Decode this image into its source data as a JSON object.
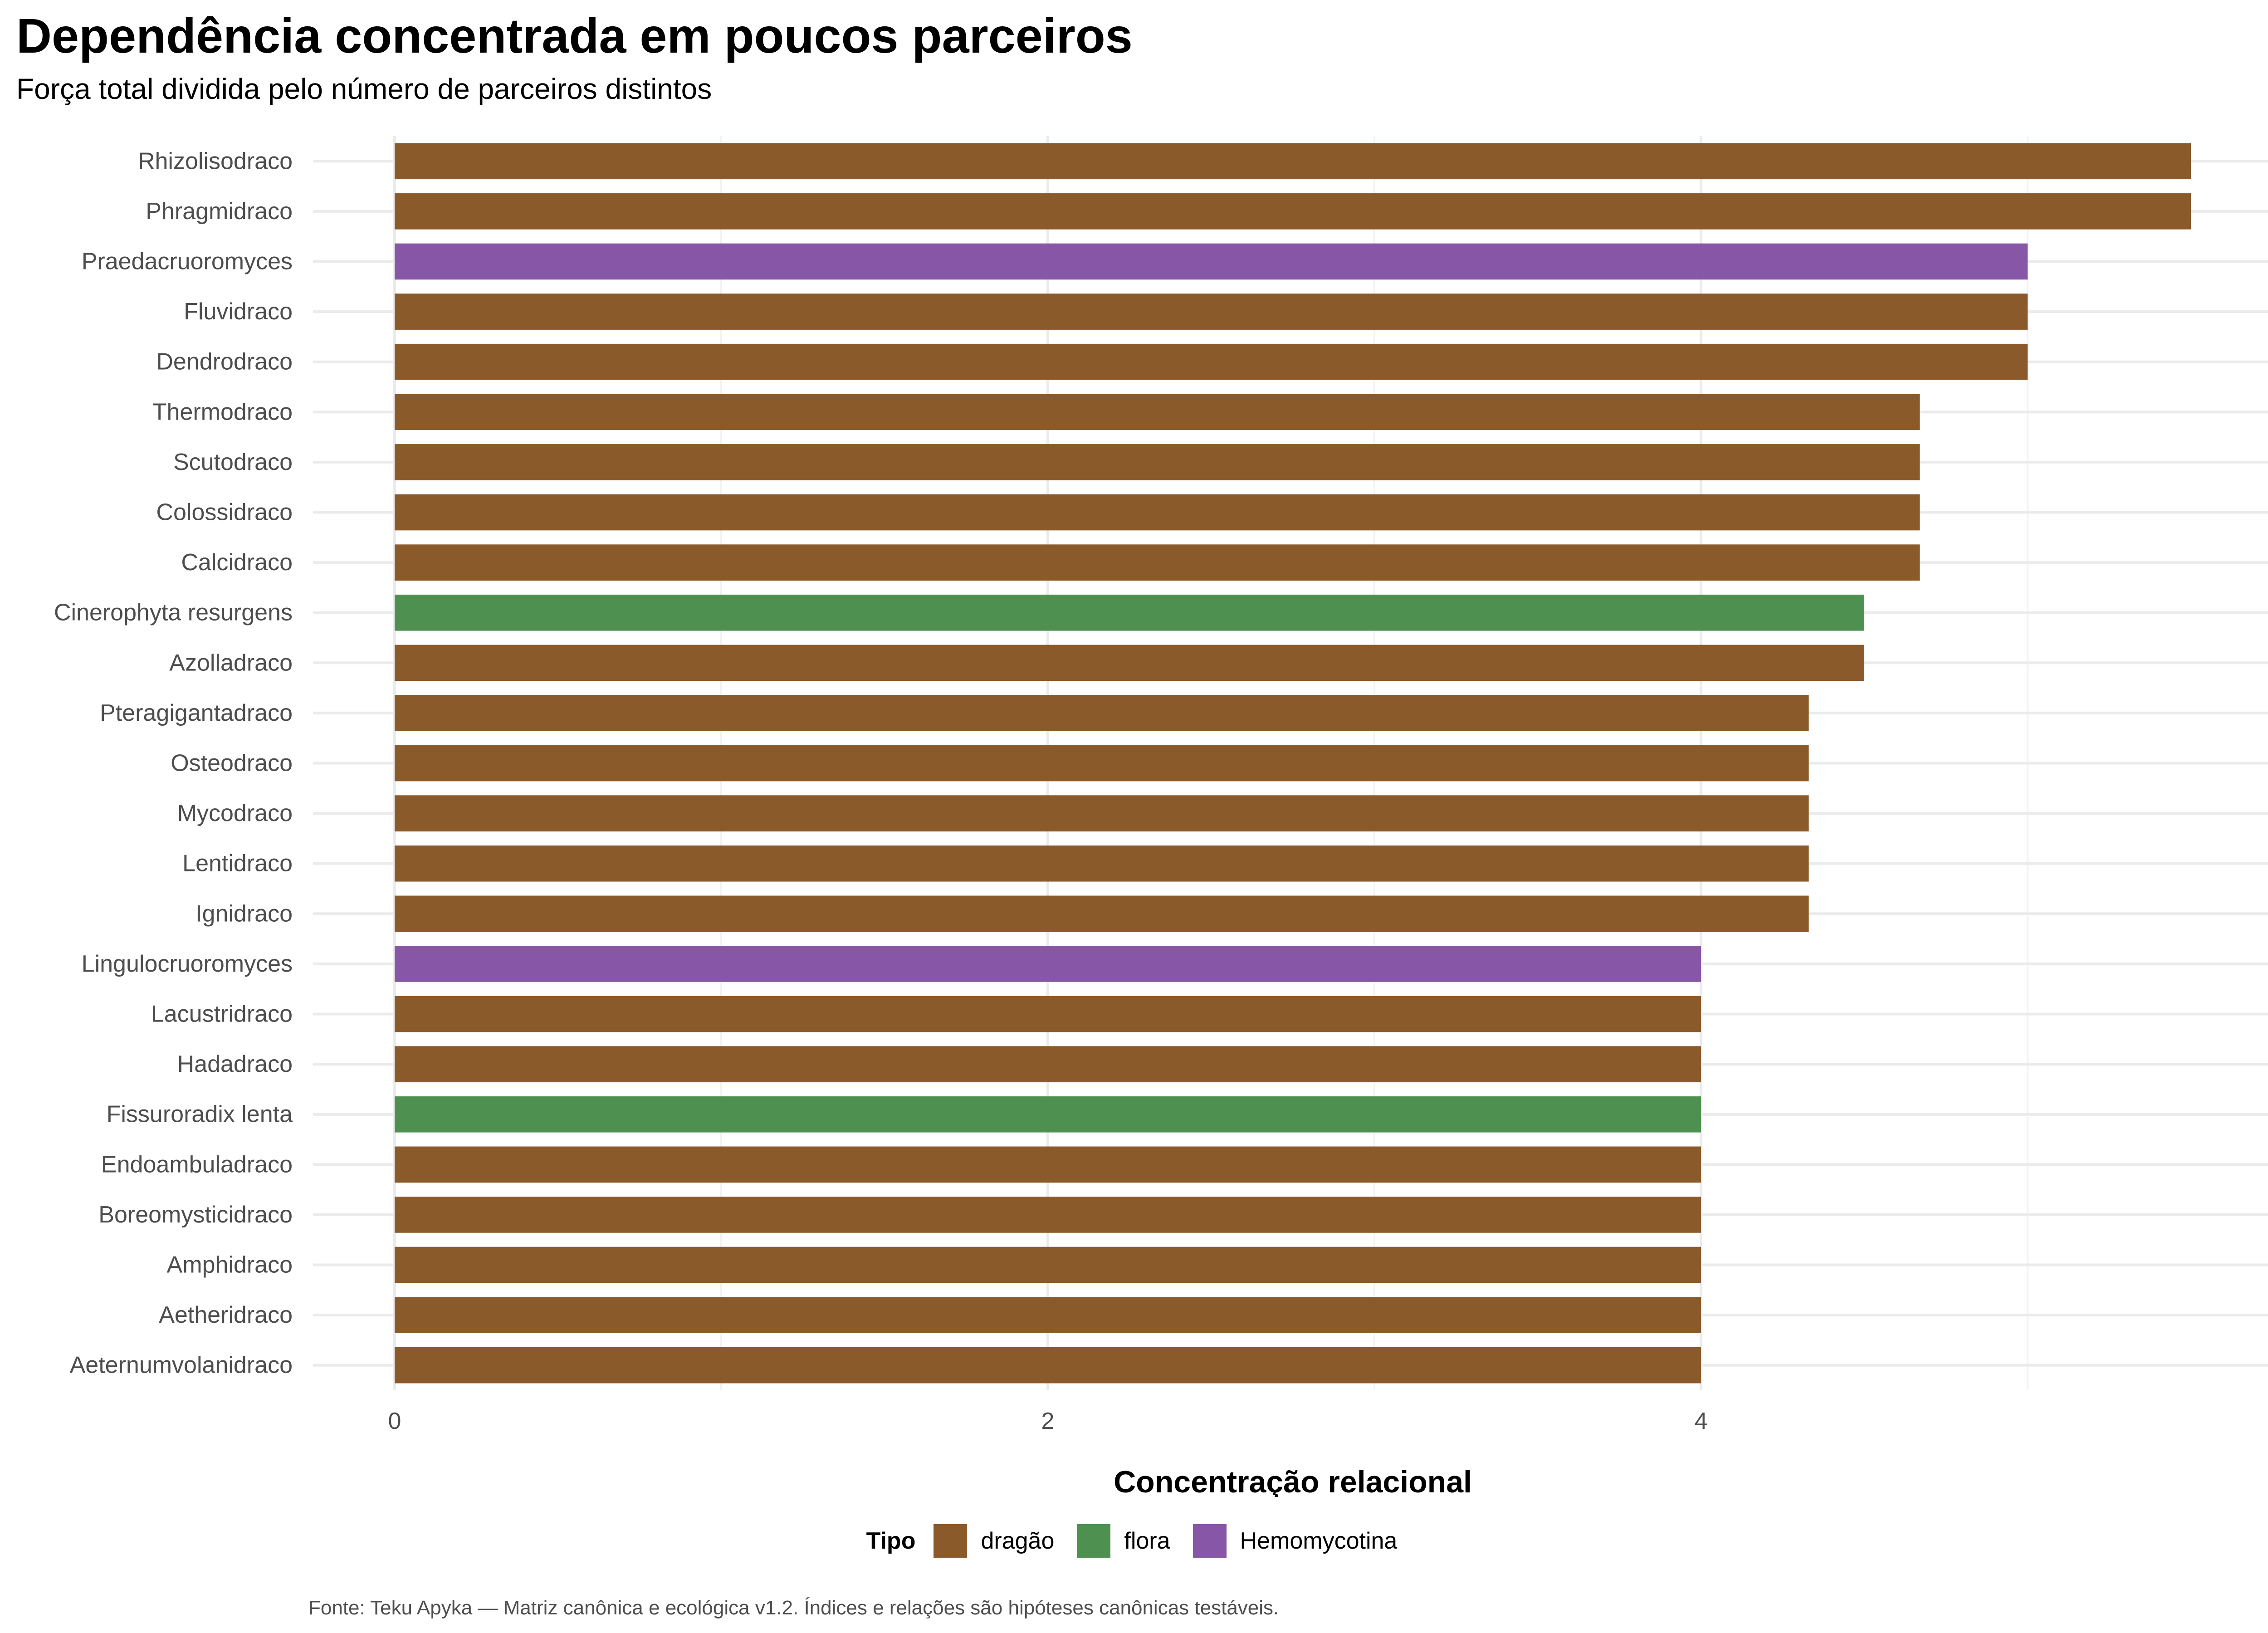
{
  "chart_data": {
    "type": "bar",
    "orientation": "horizontal",
    "title": "Dependência concentrada em poucos parceiros",
    "subtitle": "Força total dividida pelo número de parceiros distintos",
    "xlabel": "Concentração relacional",
    "ylabel": "",
    "xlim": [
      -0.25,
      5.75
    ],
    "xticks": [
      "0",
      "2",
      "4"
    ],
    "xtick_values": [
      0,
      2,
      4
    ],
    "grid": true,
    "legend_title": "Tipo",
    "legend_position": "bottom",
    "legend": [
      {
        "label": "dragão",
        "color": "#8B5A2B"
      },
      {
        "label": "flora",
        "color": "#4E9050"
      },
      {
        "label": "Hemomycotina",
        "color": "#8856A7"
      }
    ],
    "categories": [
      "Rhizolisodraco",
      "Phragmidraco",
      "Praedacruoromyces",
      "Fluvidraco",
      "Dendrodraco",
      "Thermodraco",
      "Scutodraco",
      "Colossidraco",
      "Calcidraco",
      "Cinerophyta resurgens",
      "Azolladraco",
      "Pteragigantadraco",
      "Osteodraco",
      "Mycodraco",
      "Lentidraco",
      "Ignidraco",
      "Lingulocruoromyces",
      "Lacustridraco",
      "Hadadraco",
      "Fissuroradix lenta",
      "Endoambuladraco",
      "Boreomysticidraco",
      "Amphidraco",
      "Aetheridraco",
      "Aeternumvolanidraco"
    ],
    "values": [
      5.5,
      5.5,
      5.0,
      5.0,
      5.0,
      4.67,
      4.67,
      4.67,
      4.67,
      4.5,
      4.5,
      4.33,
      4.33,
      4.33,
      4.33,
      4.33,
      4.0,
      4.0,
      4.0,
      4.0,
      4.0,
      4.0,
      4.0,
      4.0,
      4.0
    ],
    "groups": [
      "dragão",
      "dragão",
      "Hemomycotina",
      "dragão",
      "dragão",
      "dragão",
      "dragão",
      "dragão",
      "dragão",
      "flora",
      "dragão",
      "dragão",
      "dragão",
      "dragão",
      "dragão",
      "dragão",
      "Hemomycotina",
      "dragão",
      "dragão",
      "flora",
      "dragão",
      "dragão",
      "dragão",
      "dragão",
      "dragão"
    ]
  },
  "caption": "Fonte: Teku Apyka — Matriz canônica e ecológica v1.2. Índices e relações são hipóteses canônicas testáveis."
}
